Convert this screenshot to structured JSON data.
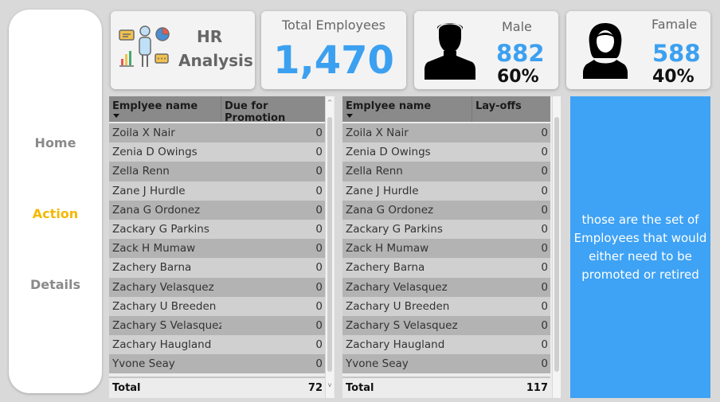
{
  "nav": {
    "items": [
      {
        "label": "Home",
        "active": false
      },
      {
        "label": "Action",
        "active": true
      },
      {
        "label": "Details",
        "active": false
      }
    ]
  },
  "header": {
    "title_line1": "HR",
    "title_line2": "Analysis",
    "total_label": "Total Employees",
    "total_value": "1,470",
    "male_label": "Male",
    "male_value": "882",
    "male_pct": "60%",
    "female_label": "Famale",
    "female_value": "588",
    "female_pct": "40%"
  },
  "colors": {
    "accent_blue": "#3ca0f0",
    "active_nav": "#f5b800",
    "note_bg": "#3ea2f5"
  },
  "promotion_table": {
    "col_name": "Emplyee name",
    "col_value": "Due for Promotion",
    "rows": [
      {
        "name": "Zoila X Nair",
        "value": "0"
      },
      {
        "name": "Zenia D Owings",
        "value": "0"
      },
      {
        "name": "Zella Renn",
        "value": "0"
      },
      {
        "name": "Zane J Hurdle",
        "value": "0"
      },
      {
        "name": "Zana G Ordonez",
        "value": "0"
      },
      {
        "name": "Zackary G Parkins",
        "value": "0"
      },
      {
        "name": "Zack H Mumaw",
        "value": "0"
      },
      {
        "name": "Zachery Barna",
        "value": "0"
      },
      {
        "name": "Zachary Velasquez",
        "value": "0"
      },
      {
        "name": "Zachary U Breeden",
        "value": "0"
      },
      {
        "name": "Zachary S Velasquez",
        "value": "0"
      },
      {
        "name": "Zachary Haugland",
        "value": "0"
      },
      {
        "name": "Yvone Seay",
        "value": "0"
      }
    ],
    "total_label": "Total",
    "total_value": "72"
  },
  "layoff_table": {
    "col_name": "Emplyee name",
    "col_value": "Lay-offs",
    "rows": [
      {
        "name": "Zoila X Nair",
        "value": "0"
      },
      {
        "name": "Zenia D Owings",
        "value": "0"
      },
      {
        "name": "Zella Renn",
        "value": "0"
      },
      {
        "name": "Zane J Hurdle",
        "value": "0"
      },
      {
        "name": "Zana G Ordonez",
        "value": "0"
      },
      {
        "name": "Zackary G Parkins",
        "value": "0"
      },
      {
        "name": "Zack H Mumaw",
        "value": "0"
      },
      {
        "name": "Zachery Barna",
        "value": "0"
      },
      {
        "name": "Zachary Velasquez",
        "value": "0"
      },
      {
        "name": "Zachary U Breeden",
        "value": "0"
      },
      {
        "name": "Zachary S Velasquez",
        "value": "0"
      },
      {
        "name": "Zachary Haugland",
        "value": "0"
      },
      {
        "name": "Yvone Seay",
        "value": "0"
      }
    ],
    "total_label": "Total",
    "total_value": "117"
  },
  "note": {
    "text": "those are the set of Employees that would either need to be promoted or retired"
  }
}
